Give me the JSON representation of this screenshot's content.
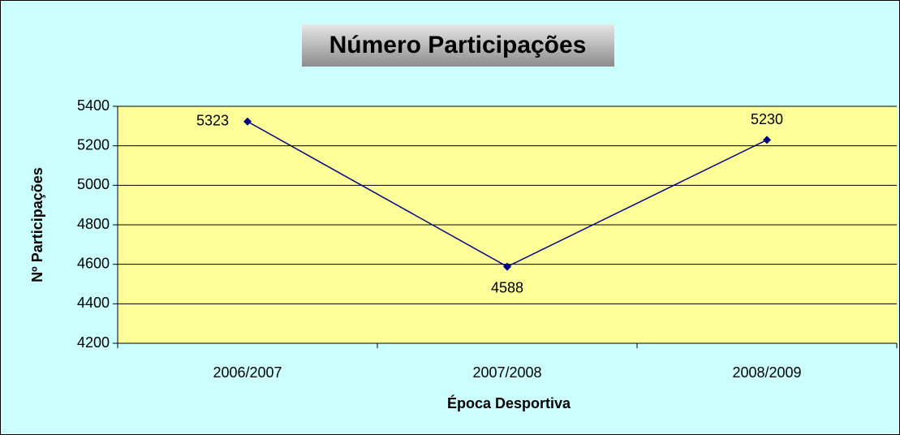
{
  "chart_data": {
    "type": "line",
    "title": "Número Participações",
    "x_label": "Época Desportiva",
    "y_label": "Nº Participações",
    "categories": [
      "2006/2007",
      "2007/2008",
      "2008/2009"
    ],
    "series": [
      {
        "name": "Nº Participações",
        "color": "#000080",
        "values": [
          5323,
          4588,
          5230
        ]
      }
    ],
    "ylim": [
      4200,
      5400
    ],
    "yticks": [
      4200,
      4400,
      4600,
      4800,
      5000,
      5200,
      5400
    ],
    "grid": true,
    "background": "#ccffff",
    "plot_background": "#ffff99"
  }
}
